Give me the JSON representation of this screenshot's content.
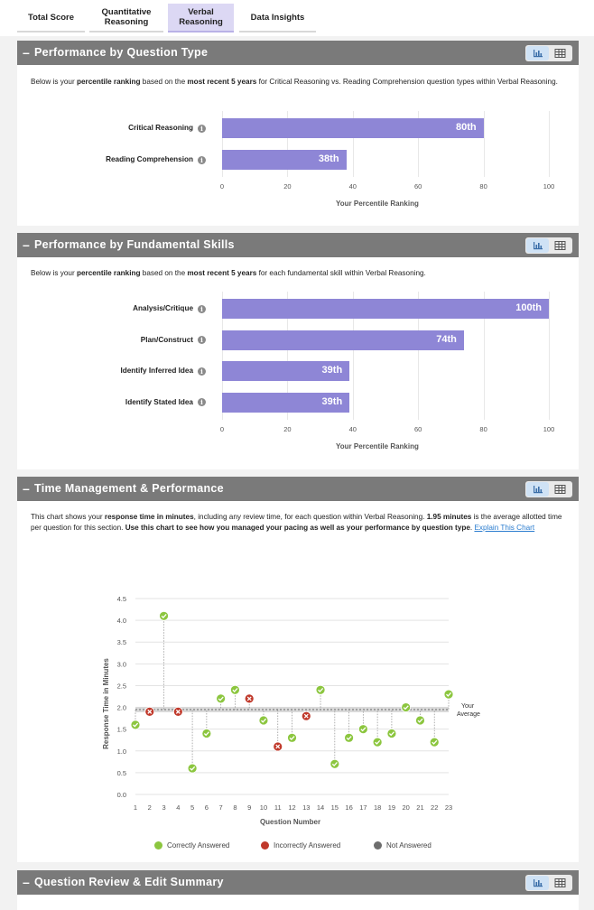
{
  "tabs": [
    {
      "label": "Total Score"
    },
    {
      "label": "Quantitative Reasoning"
    },
    {
      "label": "Verbal Reasoning"
    },
    {
      "label": "Data Insights"
    }
  ],
  "sections": {
    "question_type": {
      "title": "Performance by Question Type",
      "desc_pre": "Below is your ",
      "desc_b1": "percentile ranking",
      "desc_mid": " based on the ",
      "desc_b2": "most recent 5 years",
      "desc_post": " for Critical Reasoning vs. Reading Comprehension question types within Verbal Reasoning."
    },
    "fundamental": {
      "title": "Performance by Fundamental Skills",
      "desc_pre": "Below is your ",
      "desc_b1": "percentile ranking",
      "desc_mid": " based on the ",
      "desc_b2": "most recent 5 years",
      "desc_post": " for each fundamental skill within Verbal Reasoning."
    },
    "time": {
      "title": "Time Management & Performance",
      "desc_1": "This chart shows your ",
      "desc_b1": "response time in minutes",
      "desc_2": ", including any review time, for each question within Verbal Reasoning. ",
      "desc_b2": "1.95 minutes",
      "desc_3": " is the average allotted time per question for this section. ",
      "desc_b3": "Use this chart to see how you managed your pacing as well as your performance by question type",
      "desc_4": ". ",
      "link": "Explain This Chart"
    },
    "review": {
      "title": "Question Review & Edit Summary"
    }
  },
  "chart_data": [
    {
      "type": "bar",
      "orientation": "horizontal",
      "categories": [
        "Critical Reasoning",
        "Reading Comprehension"
      ],
      "values": [
        80,
        38
      ],
      "value_labels": [
        "80th",
        "38th"
      ],
      "xlim": [
        0,
        100
      ],
      "ticks": [
        "0",
        "20",
        "40",
        "60",
        "80",
        "100"
      ],
      "xlabel": "Your Percentile Ranking"
    },
    {
      "type": "bar",
      "orientation": "horizontal",
      "categories": [
        "Analysis/Critique",
        "Plan/Construct",
        "Identify Inferred Idea",
        "Identify Stated Idea"
      ],
      "values": [
        100,
        74,
        39,
        39
      ],
      "value_labels": [
        "100th",
        "74th",
        "39th",
        "39th"
      ],
      "xlim": [
        0,
        100
      ],
      "ticks": [
        "0",
        "20",
        "40",
        "60",
        "80",
        "100"
      ],
      "xlabel": "Your Percentile Ranking"
    },
    {
      "type": "scatter",
      "xlabel": "Question Number",
      "ylabel": "Response Time in Minutes",
      "ylim": [
        0,
        4.5
      ],
      "yticks": [
        "0.0",
        "0.5",
        "1.0",
        "1.5",
        "2.0",
        "2.5",
        "3.0",
        "3.5",
        "4.0",
        "4.5"
      ],
      "x": [
        1,
        2,
        3,
        4,
        5,
        6,
        7,
        8,
        9,
        10,
        11,
        12,
        13,
        14,
        15,
        16,
        17,
        18,
        19,
        20,
        21,
        22,
        23
      ],
      "y": [
        1.6,
        1.9,
        4.1,
        1.9,
        0.6,
        1.4,
        2.2,
        2.4,
        2.2,
        1.7,
        1.1,
        1.3,
        1.8,
        2.4,
        0.7,
        1.3,
        1.5,
        1.2,
        1.4,
        2.0,
        1.7,
        1.2,
        2.3
      ],
      "result": [
        "correct",
        "incorrect",
        "correct",
        "incorrect",
        "correct",
        "correct",
        "correct",
        "correct",
        "incorrect",
        "correct",
        "incorrect",
        "correct",
        "incorrect",
        "correct",
        "correct",
        "correct",
        "correct",
        "correct",
        "correct",
        "correct",
        "correct",
        "correct",
        "correct"
      ],
      "average": 1.95,
      "average_label": "Your Average",
      "legend": [
        {
          "label": "Correctly Answered",
          "color": "#8cc63f"
        },
        {
          "label": "Incorrectly Answered",
          "color": "#c0392b"
        },
        {
          "label": "Not Answered",
          "color": "#6d6d6d"
        }
      ]
    }
  ],
  "colors": {
    "bar": "#8e86d6",
    "correct": "#8cc63f",
    "incorrect": "#c0392b",
    "header": "#7a7a7a"
  }
}
